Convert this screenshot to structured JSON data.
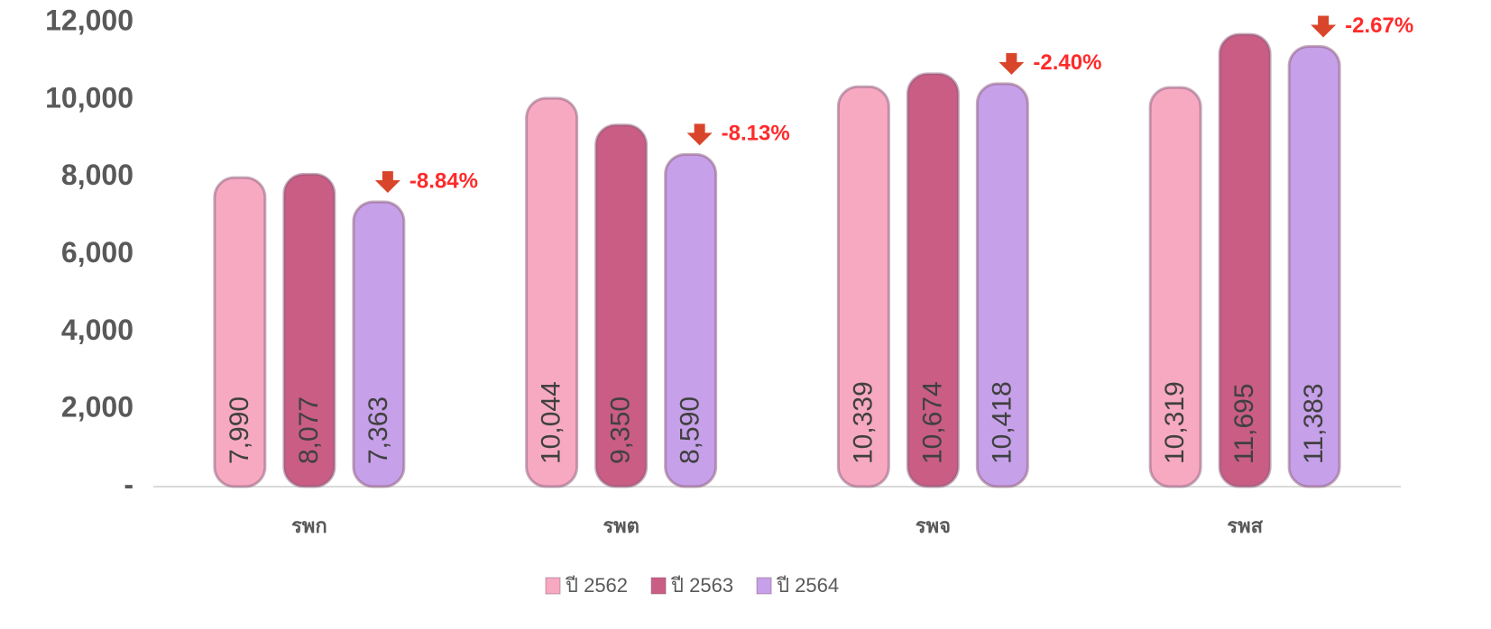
{
  "chart_data": {
    "type": "bar",
    "categories": [
      "รพก",
      "รพต",
      "รพจ",
      "รพส"
    ],
    "series": [
      {
        "name": "ปี 2562",
        "color": "#f7a9c2",
        "values": [
          7990,
          10044,
          10339,
          10319
        ],
        "value_labels": [
          "7,990",
          "10,044",
          "10,339",
          "10,319"
        ]
      },
      {
        "name": "ปี 2563",
        "color": "#c95d84",
        "values": [
          8077,
          9350,
          10674,
          11695
        ],
        "value_labels": [
          "8,077",
          "9,350",
          "10,674",
          "11,695"
        ]
      },
      {
        "name": "ปี 2564",
        "color": "#c6a0e8",
        "values": [
          7363,
          8590,
          10418,
          11383
        ],
        "value_labels": [
          "7,363",
          "8,590",
          "10,418",
          "11,383"
        ]
      }
    ],
    "annotations": [
      "-8.84%",
      "-8.13%",
      "-2.40%",
      "-2.67%"
    ],
    "ylim": [
      0,
      12000
    ],
    "yticks": [
      {
        "value": 0,
        "label": "-"
      },
      {
        "value": 2000,
        "label": "2,000"
      },
      {
        "value": 4000,
        "label": "4,000"
      },
      {
        "value": 6000,
        "label": "6,000"
      },
      {
        "value": 8000,
        "label": "8,000"
      },
      {
        "value": 10000,
        "label": "10,000"
      },
      {
        "value": 12000,
        "label": "12,000"
      }
    ],
    "legend": "bottom"
  }
}
